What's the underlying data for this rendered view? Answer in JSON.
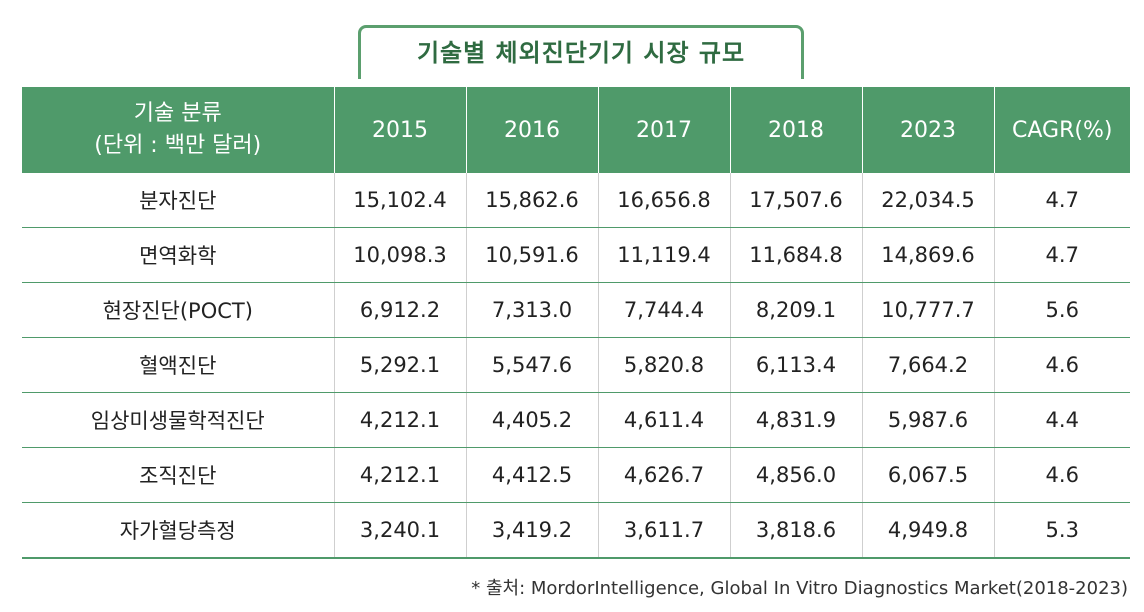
{
  "title": "기술별 체외진단기기 시장 규모",
  "header": {
    "category_line1": "기술 분류",
    "category_line2": "(단위 : 백만 달러)",
    "years": [
      "2015",
      "2016",
      "2017",
      "2018",
      "2023"
    ],
    "cagr": "CAGR(%)"
  },
  "rows": [
    {
      "name": "분자진단",
      "values": [
        "15,102.4",
        "15,862.6",
        "16,656.8",
        "17,507.6",
        "22,034.5"
      ],
      "cagr": "4.7"
    },
    {
      "name": "면역화학",
      "values": [
        "10,098.3",
        "10,591.6",
        "11,119.4",
        "11,684.8",
        "14,869.6"
      ],
      "cagr": "4.7"
    },
    {
      "name": "현장진단(POCT)",
      "values": [
        "6,912.2",
        "7,313.0",
        "7,744.4",
        "8,209.1",
        "10,777.7"
      ],
      "cagr": "5.6"
    },
    {
      "name": "혈액진단",
      "values": [
        "5,292.1",
        "5,547.6",
        "5,820.8",
        "6,113.4",
        "7,664.2"
      ],
      "cagr": "4.6"
    },
    {
      "name": "임상미생물학적진단",
      "values": [
        "4,212.1",
        "4,405.2",
        "4,611.4",
        "4,831.9",
        "5,987.6"
      ],
      "cagr": "4.4"
    },
    {
      "name": "조직진단",
      "values": [
        "4,212.1",
        "4,412.5",
        "4,626.7",
        "4,856.0",
        "6,067.5"
      ],
      "cagr": "4.6"
    },
    {
      "name": "자가혈당측정",
      "values": [
        "3,240.1",
        "3,419.2",
        "3,611.7",
        "3,818.6",
        "4,949.8"
      ],
      "cagr": "5.3"
    }
  ],
  "source": "* 출처: MordorIntelligence, Global In Vitro Diagnostics Market(2018-2023)",
  "colors": {
    "header_bg": "#4f9a6a",
    "title_border": "#5b9f6e",
    "title_text": "#2f6b41"
  }
}
